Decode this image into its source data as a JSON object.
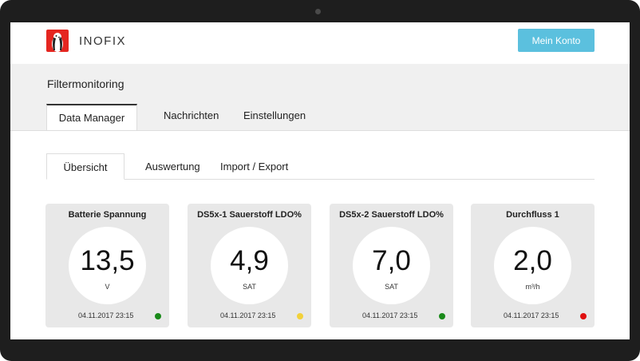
{
  "app": {
    "brand": "INOFIX",
    "account_button": "Mein Konto"
  },
  "header": {
    "title": "Filtermonitoring",
    "tabs": [
      {
        "label": "Data Manager",
        "active": true
      },
      {
        "label": "Nachrichten",
        "active": false
      },
      {
        "label": "Einstellungen",
        "active": false
      }
    ]
  },
  "subtabs": [
    {
      "label": "Übersicht",
      "active": true
    },
    {
      "label": "Auswertung",
      "active": false
    },
    {
      "label": "Import / Export",
      "active": false
    }
  ],
  "cards": [
    {
      "title": "Batterie Spannung",
      "value": "13,5",
      "unit": "V",
      "timestamp": "04.11.2017 23:15",
      "status_color": "#1a8a1a"
    },
    {
      "title": "DS5x-1 Sauerstoff LDO%",
      "value": "4,9",
      "unit": "SAT",
      "timestamp": "04.11.2017 23:15",
      "status_color": "#f2d13a"
    },
    {
      "title": "DS5x-2 Sauerstoff LDO%",
      "value": "7,0",
      "unit": "SAT",
      "timestamp": "04.11.2017 23:15",
      "status_color": "#1a8a1a"
    },
    {
      "title": "Durchfluss 1",
      "value": "2,0",
      "unit": "m³/h",
      "timestamp": "04.11.2017 23:15",
      "status_color": "#e01010"
    }
  ],
  "icons": {
    "logo": "penguin-logo-icon"
  }
}
